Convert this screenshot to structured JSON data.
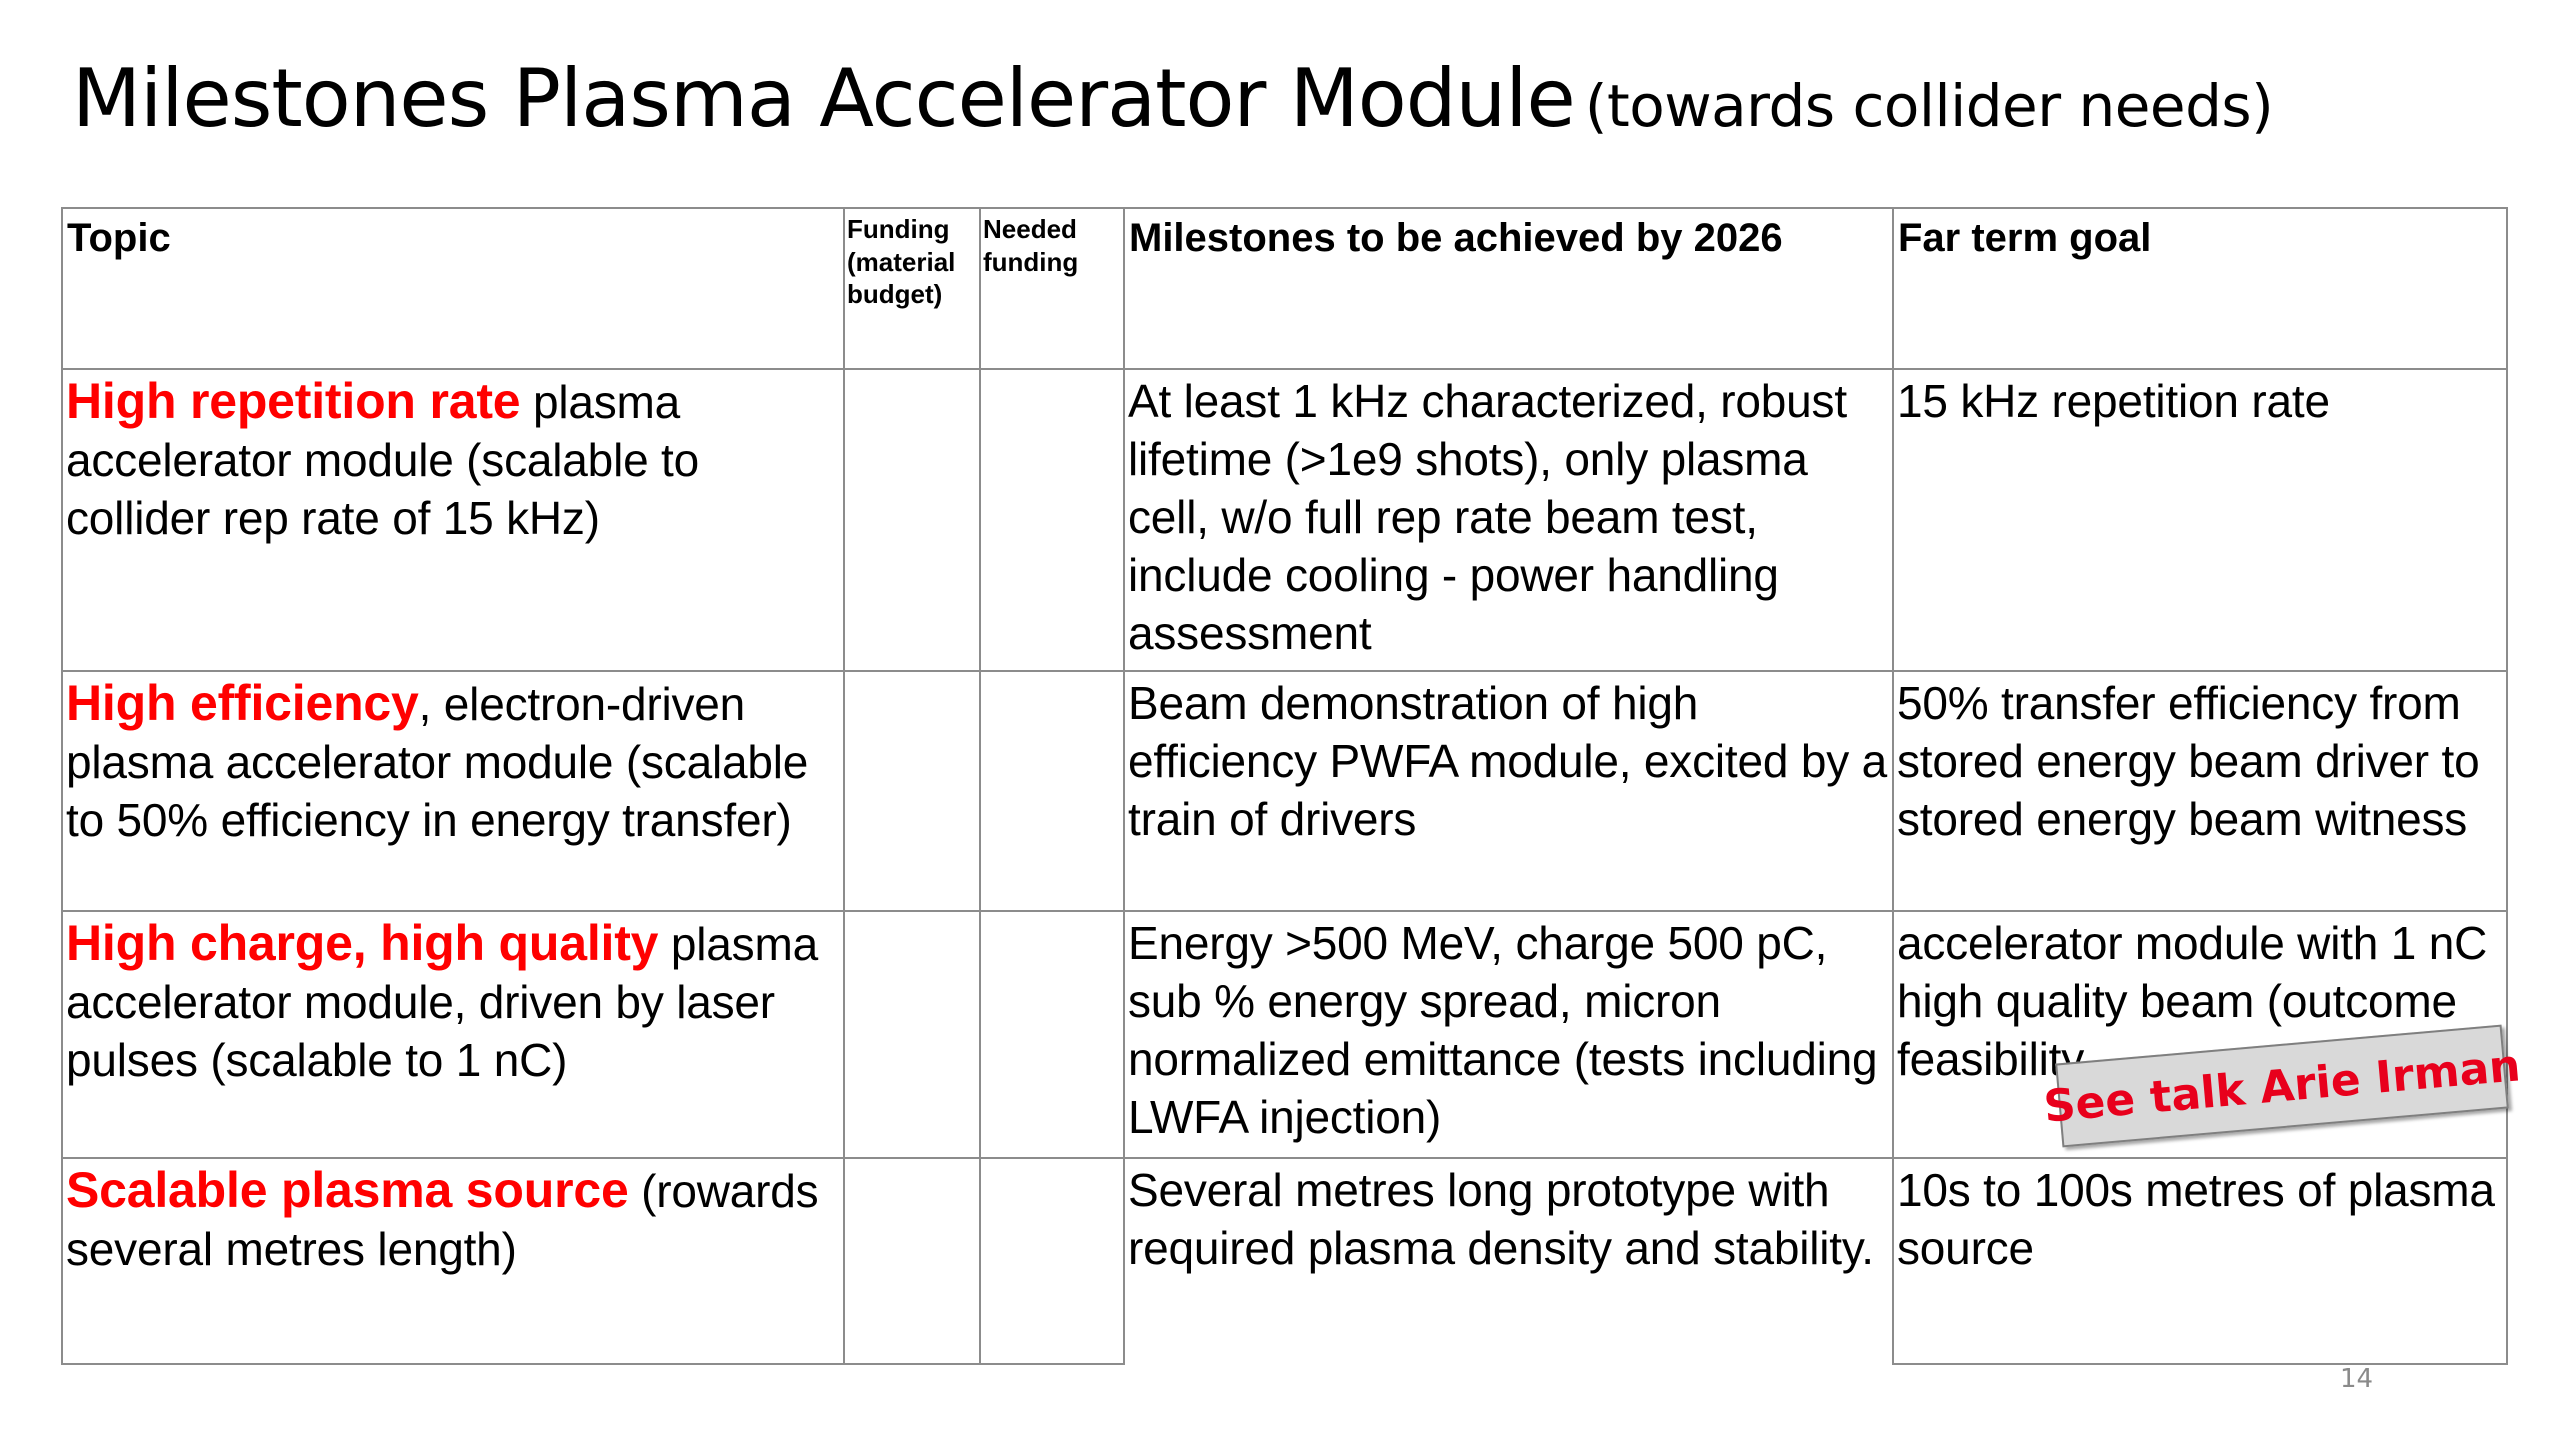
{
  "title": {
    "main": "Milestones Plasma Accelerator Module",
    "subtitle": "(towards collider needs)"
  },
  "table": {
    "headers": {
      "topic": "Topic",
      "funding": "Funding (material budget)",
      "needed": "Needed funding",
      "milestones": "Milestones to be achieved by 2026",
      "far": "Far term goal"
    },
    "rows": [
      {
        "topic_highlight": "High repetition rate",
        "topic_rest": " plasma accelerator module (scalable to collider rep rate of 15 kHz)",
        "funding": "",
        "needed": "",
        "milestones": "At least 1 kHz characterized, robust lifetime (>1e9 shots), only plasma cell, w/o full rep rate beam test, include cooling - power handling assessment",
        "far": "15 kHz repetition rate"
      },
      {
        "topic_highlight": "High efficiency",
        "topic_rest": ", electron-driven plasma accelerator module (scalable to 50% efficiency in energy transfer)",
        "funding": "",
        "needed": "",
        "milestones": "Beam demonstration of high efficiency PWFA module, excited by a train of drivers",
        "far": "50% transfer efficiency from stored energy beam driver to stored energy beam witness"
      },
      {
        "topic_highlight": "High charge, high quality",
        "topic_rest": " plasma accelerator module, driven by laser pulses (scalable to 1 nC)",
        "funding": "",
        "needed": "",
        "milestones": "Energy >500 MeV, charge 500 pC, sub % energy spread, micron normalized emittance (tests including LWFA injection)",
        "far": "accelerator module with 1 nC high quality beam (outcome feasibility"
      },
      {
        "topic_highlight": "Scalable plasma source",
        "topic_rest": " (rowards several metres length)",
        "funding": "",
        "needed": "",
        "milestones": "Several metres long prototype with required plasma density and stability.",
        "far": "10s to 100s metres of plasma source"
      }
    ]
  },
  "sticky_note": "See talk Arie Irman",
  "page_number": "14",
  "colors": {
    "highlight": "#ff0000",
    "grid": "#8c8c8c",
    "note_bg": "#d9d9d9",
    "note_text": "#e8001c"
  }
}
